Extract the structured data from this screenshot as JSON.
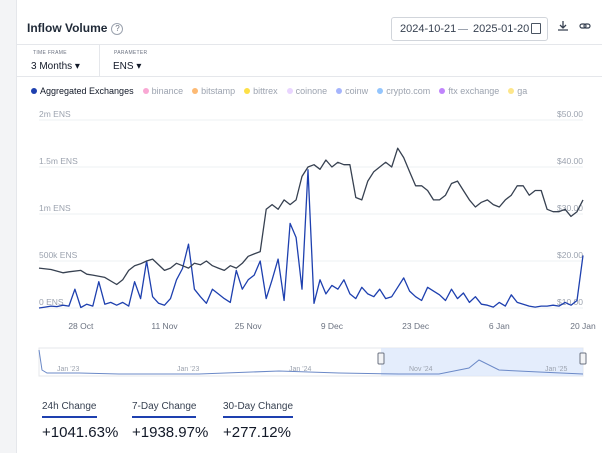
{
  "header": {
    "title": "Inflow Volume",
    "help_icon": "?",
    "date_start": "2024-10-21",
    "date_end": "2025-01-20"
  },
  "toolbar": {
    "calendar_icon": "calendar-icon",
    "download_icon": "download-icon",
    "share_icon": "link-icon"
  },
  "filters": {
    "timeframe_label": "TIME FRAME",
    "timeframe_value": "3 Months",
    "parameter_label": "PARAMETER",
    "parameter_value": "ENS"
  },
  "legend": [
    {
      "name": "Aggregated Exchanges",
      "color": "#1e40af",
      "active": true
    },
    {
      "name": "binance",
      "color": "#f9a8d4",
      "active": false
    },
    {
      "name": "bitstamp",
      "color": "#fdba74",
      "active": false
    },
    {
      "name": "bittrex",
      "color": "#fde047",
      "active": false
    },
    {
      "name": "coinone",
      "color": "#e9d5ff",
      "active": false
    },
    {
      "name": "coinw",
      "color": "#a5b4fc",
      "active": false
    },
    {
      "name": "crypto.com",
      "color": "#93c5fd",
      "active": false
    },
    {
      "name": "ftx exchange",
      "color": "#c084fc",
      "active": false
    },
    {
      "name": "ga",
      "color": "#fde68a",
      "active": false
    }
  ],
  "chart_data": {
    "type": "line",
    "left_axis": {
      "ticks": [
        "0 ENS",
        "500k ENS",
        "1m ENS",
        "1.5m ENS",
        "2m ENS"
      ],
      "tick_values": [
        0,
        500000,
        1000000,
        1500000,
        2000000
      ],
      "ylim": [
        0,
        2000000
      ]
    },
    "right_axis": {
      "ticks": [
        "$10.00",
        "$20.00",
        "$30.00",
        "$40.00",
        "$50.00"
      ],
      "tick_values": [
        10,
        20,
        30,
        40,
        50
      ],
      "ylim": [
        10,
        50
      ]
    },
    "x_ticks": [
      {
        "label": "28 Oct",
        "day": 7
      },
      {
        "label": "11 Nov",
        "day": 21
      },
      {
        "label": "25 Nov",
        "day": 35
      },
      {
        "label": "9 Dec",
        "day": 49
      },
      {
        "label": "23 Dec",
        "day": 63
      },
      {
        "label": "6 Jan",
        "day": 77
      },
      {
        "label": "20 Jan",
        "day": 91
      }
    ],
    "xlim": [
      0,
      91
    ],
    "series": [
      {
        "name": "Aggregated Exchanges",
        "axis": "left",
        "color": "#1e40af",
        "values": [
          [
            0,
            0
          ],
          [
            1,
            10000
          ],
          [
            2,
            20000
          ],
          [
            3,
            15000
          ],
          [
            4,
            30000
          ],
          [
            5,
            20000
          ],
          [
            6,
            200000
          ],
          [
            7,
            5000
          ],
          [
            8,
            40000
          ],
          [
            9,
            20000
          ],
          [
            10,
            280000
          ],
          [
            11,
            40000
          ],
          [
            12,
            60000
          ],
          [
            13,
            30000
          ],
          [
            14,
            60000
          ],
          [
            15,
            20000
          ],
          [
            16,
            280000
          ],
          [
            17,
            100000
          ],
          [
            18,
            500000
          ],
          [
            19,
            120000
          ],
          [
            20,
            50000
          ],
          [
            21,
            30000
          ],
          [
            22,
            100000
          ],
          [
            23,
            300000
          ],
          [
            24,
            420000
          ],
          [
            25,
            680000
          ],
          [
            26,
            200000
          ],
          [
            27,
            120000
          ],
          [
            28,
            50000
          ],
          [
            29,
            200000
          ],
          [
            30,
            150000
          ],
          [
            31,
            100000
          ],
          [
            32,
            60000
          ],
          [
            33,
            400000
          ],
          [
            34,
            200000
          ],
          [
            35,
            300000
          ],
          [
            36,
            350000
          ],
          [
            37,
            500000
          ],
          [
            38,
            100000
          ],
          [
            39,
            300000
          ],
          [
            40,
            520000
          ],
          [
            41,
            80000
          ],
          [
            42,
            900000
          ],
          [
            43,
            750000
          ],
          [
            44,
            200000
          ],
          [
            45,
            1470000
          ],
          [
            46,
            50000
          ],
          [
            47,
            300000
          ],
          [
            48,
            150000
          ],
          [
            49,
            240000
          ],
          [
            50,
            200000
          ],
          [
            51,
            300000
          ],
          [
            52,
            150000
          ],
          [
            53,
            100000
          ],
          [
            54,
            220000
          ],
          [
            55,
            150000
          ],
          [
            56,
            120000
          ],
          [
            57,
            200000
          ],
          [
            58,
            100000
          ],
          [
            59,
            120000
          ],
          [
            60,
            220000
          ],
          [
            61,
            320000
          ],
          [
            62,
            180000
          ],
          [
            63,
            120000
          ],
          [
            64,
            80000
          ],
          [
            65,
            220000
          ],
          [
            66,
            180000
          ],
          [
            67,
            140000
          ],
          [
            68,
            80000
          ],
          [
            69,
            200000
          ],
          [
            70,
            100000
          ],
          [
            71,
            160000
          ],
          [
            72,
            60000
          ],
          [
            73,
            120000
          ],
          [
            74,
            40000
          ],
          [
            75,
            30000
          ],
          [
            76,
            10000
          ],
          [
            77,
            60000
          ],
          [
            78,
            20000
          ],
          [
            79,
            140000
          ],
          [
            80,
            60000
          ],
          [
            81,
            40000
          ],
          [
            82,
            20000
          ],
          [
            83,
            10000
          ],
          [
            84,
            20000
          ],
          [
            85,
            20000
          ],
          [
            86,
            30000
          ],
          [
            87,
            20000
          ],
          [
            88,
            60000
          ],
          [
            89,
            30000
          ],
          [
            90,
            80000
          ],
          [
            91,
            560000
          ]
        ]
      },
      {
        "name": "Price",
        "axis": "right",
        "color": "#374151",
        "values": [
          [
            0,
            18.5
          ],
          [
            2,
            18.2
          ],
          [
            4,
            17.5
          ],
          [
            5,
            17.7
          ],
          [
            7,
            18
          ],
          [
            8,
            17.2
          ],
          [
            9,
            17
          ],
          [
            11,
            16.5
          ],
          [
            13,
            15
          ],
          [
            14,
            16
          ],
          [
            15,
            18
          ],
          [
            16,
            19
          ],
          [
            17,
            19.4
          ],
          [
            18,
            20
          ],
          [
            19,
            20.4
          ],
          [
            21,
            18
          ],
          [
            22,
            18.5
          ],
          [
            23,
            19.5
          ],
          [
            24,
            19
          ],
          [
            25,
            18.5
          ],
          [
            26,
            19.5
          ],
          [
            27,
            19.2
          ],
          [
            28,
            20
          ],
          [
            29,
            19
          ],
          [
            30,
            18.5
          ],
          [
            31,
            18
          ],
          [
            32,
            19
          ],
          [
            33,
            18.5
          ],
          [
            34,
            19.5
          ],
          [
            35,
            21
          ],
          [
            36,
            21.5
          ],
          [
            37,
            22
          ],
          [
            38,
            31
          ],
          [
            39,
            32
          ],
          [
            40,
            31
          ],
          [
            41,
            33
          ],
          [
            42,
            32
          ],
          [
            43,
            33
          ],
          [
            44,
            38
          ],
          [
            45,
            40
          ],
          [
            46,
            40.5
          ],
          [
            47,
            39.5
          ],
          [
            48,
            41.5
          ],
          [
            49,
            40
          ],
          [
            50,
            41
          ],
          [
            51,
            40.5
          ],
          [
            52,
            40.5
          ],
          [
            53,
            33.5
          ],
          [
            54,
            33
          ],
          [
            55,
            37
          ],
          [
            56,
            39
          ],
          [
            57,
            40
          ],
          [
            58,
            41
          ],
          [
            59,
            40
          ],
          [
            60,
            44
          ],
          [
            61,
            42
          ],
          [
            62,
            39
          ],
          [
            63,
            36
          ],
          [
            64,
            36
          ],
          [
            65,
            35
          ],
          [
            66,
            33
          ],
          [
            67,
            33
          ],
          [
            68,
            34
          ],
          [
            69,
            36.5
          ],
          [
            70,
            37
          ],
          [
            71,
            35
          ],
          [
            72,
            33
          ],
          [
            73,
            31.5
          ],
          [
            74,
            32.5
          ],
          [
            75,
            33
          ],
          [
            76,
            32
          ],
          [
            77,
            31.5
          ],
          [
            78,
            33
          ],
          [
            79,
            34
          ],
          [
            80,
            36
          ],
          [
            81,
            36
          ],
          [
            82,
            34
          ],
          [
            83,
            35
          ],
          [
            84,
            35
          ],
          [
            85,
            31
          ],
          [
            86,
            30.5
          ],
          [
            87,
            30.5
          ],
          [
            88,
            31
          ],
          [
            89,
            29.5
          ],
          [
            90,
            30.5
          ],
          [
            91,
            33
          ]
        ]
      }
    ],
    "navigator": {
      "labels": [
        "Jan '23",
        "Jan '23",
        "Jan '24",
        "Nov '24",
        "Jan '25"
      ]
    }
  },
  "stats": [
    {
      "label": "24h Change",
      "value": "+1041.63%"
    },
    {
      "label": "7-Day Change",
      "value": "+1938.97%"
    },
    {
      "label": "30-Day Change",
      "value": "+277.12%"
    }
  ]
}
